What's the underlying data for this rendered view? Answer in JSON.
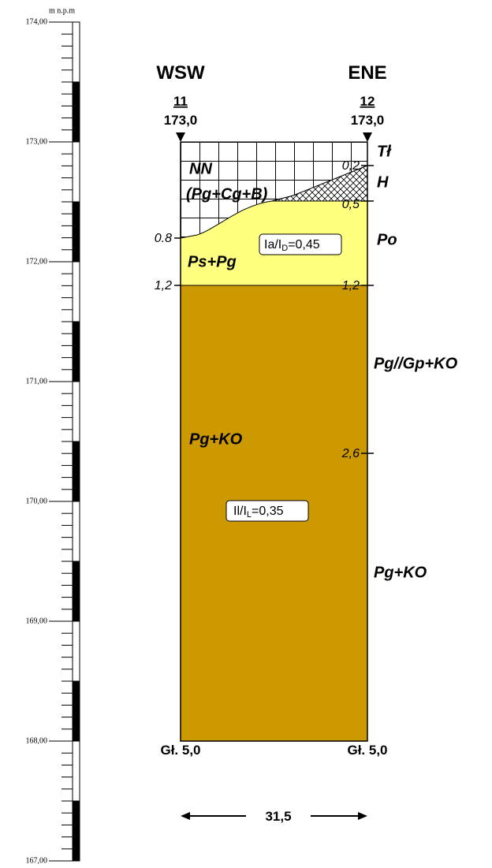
{
  "scale": {
    "unit": "m n.p.m",
    "ticks": [
      "174,00",
      "173,00",
      "172,00",
      "171,00",
      "170,00",
      "169,00",
      "168,00",
      "167,00"
    ]
  },
  "directions": {
    "left": "WSW",
    "right": "ENE"
  },
  "boreholes": [
    {
      "number": "11",
      "elevation": "173,0",
      "depth": "Gł. 5,0"
    },
    {
      "number": "12",
      "elevation": "173,0",
      "depth": "Gł. 5,0"
    }
  ],
  "left_depth_labels": [
    "0.8",
    "1,2"
  ],
  "right_depth_labels": [
    "0,2",
    "0,5",
    "1,2",
    "2,6"
  ],
  "layer_labels": [
    "NN",
    "(Pg+Cg+B)",
    "Ps+Pg",
    "Pg+KO"
  ],
  "right_layer_labels": [
    "Tł",
    "H",
    "Po",
    "Pg//Gp+KO",
    "Pg+KO"
  ],
  "boxes": [
    {
      "main": "Ia/I",
      "sub": "D",
      "rest": "=0,45"
    },
    {
      "main": "Il/I",
      "sub": "L",
      "rest": "=0,35"
    }
  ],
  "distance": "31,5"
}
